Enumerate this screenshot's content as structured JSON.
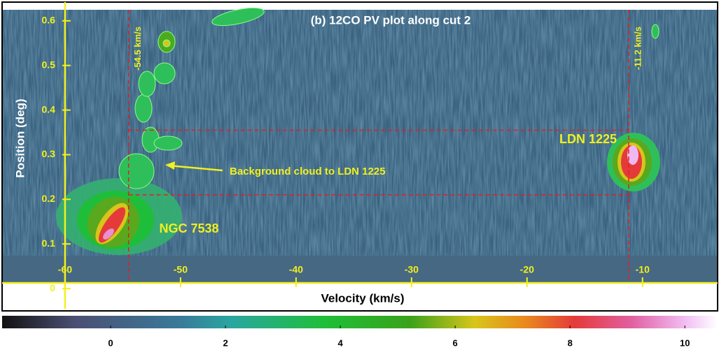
{
  "chart_data": {
    "type": "heatmap",
    "title": "(b) 12CO PV plot along cut 2",
    "xlabel": "Velocity (km/s)",
    "ylabel": "Position (deg)",
    "xlim": [
      -65.45,
      -3.5
    ],
    "ylim": [
      -0.05,
      0.642
    ],
    "xticks": [
      -60,
      -50,
      -40,
      -30,
      -20,
      -10
    ],
    "yticks": [
      0,
      0.1,
      0.2,
      0.3,
      0.4,
      0.5,
      0.6
    ],
    "vlines": [
      {
        "value": -54.5,
        "label": "-54.5 km/s"
      },
      {
        "value": -11.2,
        "label": "-11.2 km/s"
      }
    ],
    "hlines": [
      0.355,
      0.21
    ],
    "annotations": [
      "LDN 1225",
      "NGC 7538",
      "Background cloud to LDN 1225"
    ],
    "colorbar": {
      "clim": [
        -1.89,
        10.57
      ],
      "ticks": [
        0,
        2,
        4,
        6,
        8,
        10
      ]
    }
  }
}
